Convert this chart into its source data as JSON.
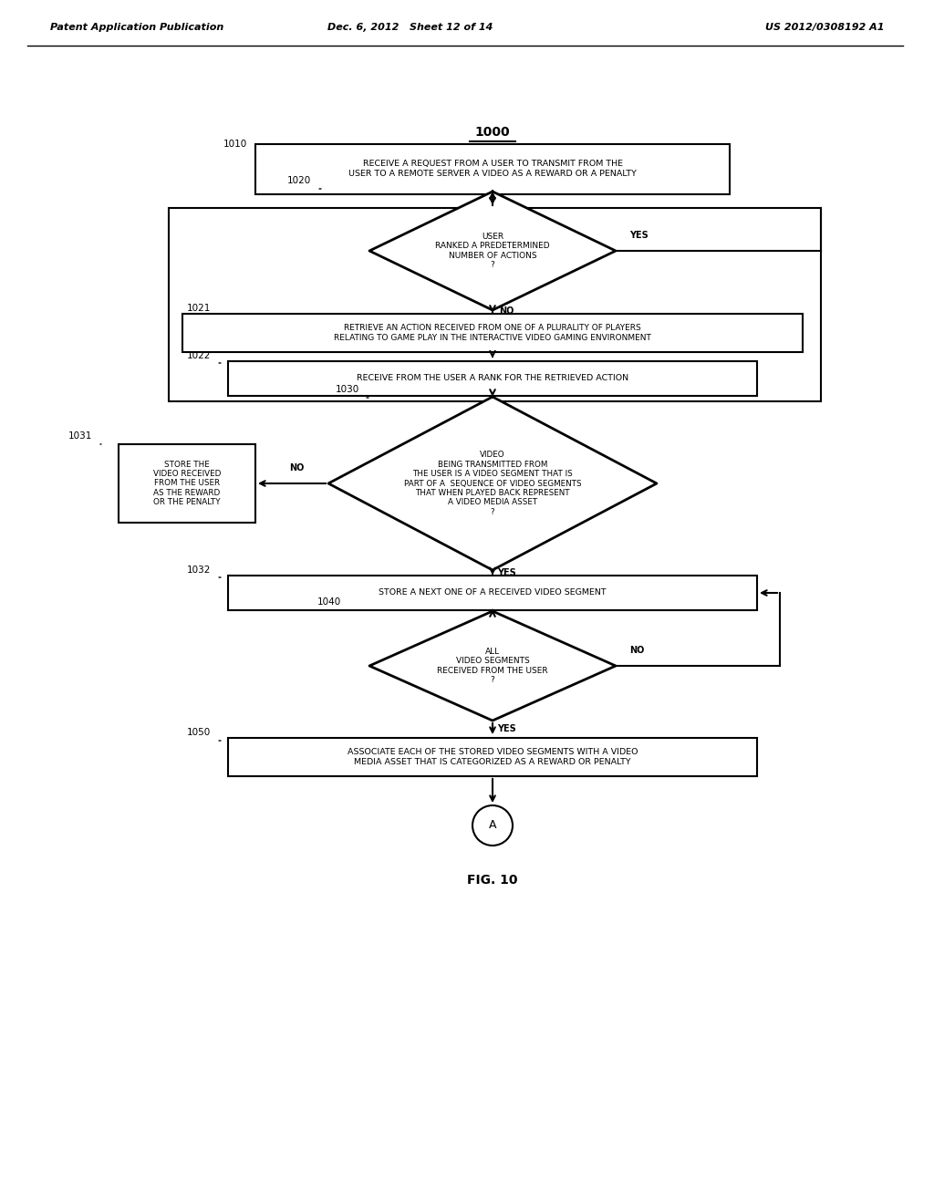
{
  "header_left": "Patent Application Publication",
  "header_mid": "Dec. 6, 2012   Sheet 12 of 14",
  "header_right": "US 2012/0308192 A1",
  "fig_label": "FIG. 10",
  "title_label": "1000",
  "nodes": {
    "1010": {
      "type": "rect",
      "label": "RECEIVE A REQUEST FROM A USER TO TRANSMIT FROM THE\nUSER TO A REMOTE SERVER A VIDEO AS A REWARD OR A PENALTY",
      "ref": "1010"
    },
    "1020": {
      "type": "diamond",
      "label": "USER\nRANKED A PREDETERMINED\nNUMBER OF ACTIONS\n?",
      "ref": "1020"
    },
    "1021": {
      "type": "rect",
      "label": "RETRIEVE AN ACTION RECEIVED FROM ONE OF A PLURALITY OF PLAYERS\nRELATING TO GAME PLAY IN THE INTERACTIVE VIDEO GAMING ENVIRONMENT",
      "ref": "1021"
    },
    "1022": {
      "type": "rect",
      "label": "RECEIVE FROM THE USER A RANK FOR THE RETRIEVED ACTION",
      "ref": "1022"
    },
    "1030": {
      "type": "diamond",
      "label": "VIDEO\nBEING TRANSMITTED FROM\nTHE USER IS A VIDEO SEGMENT THAT IS\nPART OF A  SEQUENCE OF VIDEO SEGMENTS\nTHAT WHEN PLAYED BACK REPRESENT\nA VIDEO MEDIA ASSET\n?",
      "ref": "1030"
    },
    "1031": {
      "type": "rect",
      "label": "STORE THE\nVIDEO RECEIVED\nFROM THE USER\nAS THE REWARD\nOR THE PENALTY",
      "ref": "1031"
    },
    "1032": {
      "type": "rect",
      "label": "STORE A NEXT ONE OF A RECEIVED VIDEO SEGMENT",
      "ref": "1032"
    },
    "1040": {
      "type": "diamond",
      "label": "ALL\nVIDEO SEGMENTS\nRECEIVED FROM THE USER\n?",
      "ref": "1040"
    },
    "1050": {
      "type": "rect",
      "label": "ASSOCIATE EACH OF THE STORED VIDEO SEGMENTS WITH A VIDEO\nMEDIA ASSET THAT IS CATEGORIZED AS A REWARD OR PENALTY",
      "ref": "1050"
    },
    "termA": {
      "type": "circle",
      "label": "A",
      "ref": ""
    }
  },
  "bg_color": "#ffffff",
  "text_color": "#000000",
  "line_color": "#000000"
}
